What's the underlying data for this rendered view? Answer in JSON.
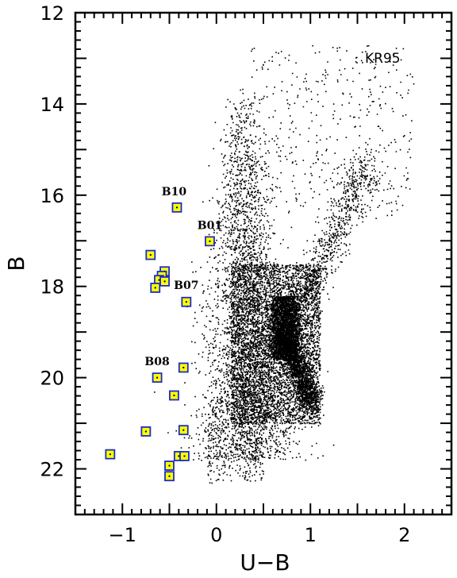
{
  "chart_data": {
    "type": "scatter",
    "title": "",
    "xlabel": "U−B",
    "ylabel": "B",
    "xlim": [
      -1.5,
      2.5
    ],
    "ylim": [
      23,
      12
    ],
    "y_inverted": true,
    "grid": false,
    "inset_label": "KR95",
    "x_ticks": [
      {
        "value": -1,
        "label": "−1"
      },
      {
        "value": 0,
        "label": "0"
      },
      {
        "value": 1,
        "label": "1"
      },
      {
        "value": 2,
        "label": "2"
      }
    ],
    "y_ticks": [
      {
        "value": 12,
        "label": "12"
      },
      {
        "value": 14,
        "label": "14"
      },
      {
        "value": 16,
        "label": "16"
      },
      {
        "value": 18,
        "label": "18"
      },
      {
        "value": 20,
        "label": "20"
      },
      {
        "value": 22,
        "label": "22"
      }
    ],
    "colors": {
      "field_point": "#000000",
      "marker_fill": "#ffff00",
      "marker_stroke": "#1a2ccc"
    },
    "highlighted_stars": [
      {
        "x": -0.42,
        "y": 16.27
      },
      {
        "x": -0.07,
        "y": 17.01
      },
      {
        "x": -0.7,
        "y": 17.31
      },
      {
        "x": -0.55,
        "y": 17.67
      },
      {
        "x": -0.58,
        "y": 17.77
      },
      {
        "x": -0.61,
        "y": 17.86
      },
      {
        "x": -0.55,
        "y": 17.89
      },
      {
        "x": -0.65,
        "y": 18.03
      },
      {
        "x": -0.32,
        "y": 18.34
      },
      {
        "x": -0.63,
        "y": 20.0
      },
      {
        "x": -0.35,
        "y": 19.78
      },
      {
        "x": -0.45,
        "y": 20.39
      },
      {
        "x": -0.35,
        "y": 21.15
      },
      {
        "x": -0.75,
        "y": 21.18
      },
      {
        "x": -1.13,
        "y": 21.68
      },
      {
        "x": -0.4,
        "y": 21.72
      },
      {
        "x": -0.34,
        "y": 21.72
      },
      {
        "x": -0.5,
        "y": 21.93
      },
      {
        "x": -0.5,
        "y": 22.16
      }
    ],
    "annotations": [
      {
        "text": "B10",
        "x": -0.45,
        "y": 16.0
      },
      {
        "text": "B01",
        "x": -0.07,
        "y": 16.74
      },
      {
        "text": "B07",
        "x": -0.32,
        "y": 18.06
      },
      {
        "text": "B08",
        "x": -0.63,
        "y": 19.73
      }
    ],
    "field_population_regions": [
      {
        "kind": "main_sequence_band",
        "x_center_at_top": 0.25,
        "x_center_at_bottom": 0.35,
        "y_range": [
          13.6,
          21.8
        ],
        "width": 0.45,
        "count": 3200
      },
      {
        "kind": "dense_clump",
        "x": [
          0.6,
          0.85
        ],
        "y": [
          18.2,
          19.6
        ],
        "count": 2200
      },
      {
        "kind": "dense_ridge",
        "x_from": 0.72,
        "x_to": 1.02,
        "y_from": 19.0,
        "y_to": 20.6,
        "count": 1800
      },
      {
        "kind": "broad_core",
        "x": [
          0.15,
          1.1
        ],
        "y": [
          17.5,
          21.0
        ],
        "count": 4500
      },
      {
        "kind": "red_giant_branch",
        "x_from": 0.75,
        "x_to": 1.6,
        "y_from": 19.0,
        "y_to": 15.3,
        "width": 0.18,
        "count": 900
      },
      {
        "kind": "upper_scatter",
        "x": [
          0.35,
          2.1
        ],
        "y": [
          12.7,
          16.5
        ],
        "count": 420
      },
      {
        "kind": "faint_tail",
        "x": [
          -0.1,
          0.5
        ],
        "y": [
          20.5,
          22.3
        ],
        "count": 300
      }
    ]
  }
}
